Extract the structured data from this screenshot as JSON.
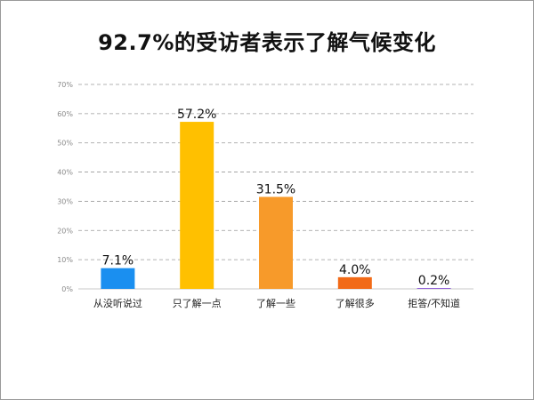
{
  "chart_data": {
    "type": "bar",
    "title": "92.7%的受访者表示了解气候变化",
    "categories": [
      "从没听说过",
      "只了解一点",
      "了解一些",
      "了解很多",
      "拒答/不知道"
    ],
    "values": [
      7.1,
      57.2,
      31.5,
      4.0,
      0.2
    ],
    "data_labels": [
      "7.1%",
      "57.2%",
      "31.5%",
      "4.0%",
      "0.2%"
    ],
    "colors": [
      "#1a8ff0",
      "#ffc000",
      "#f79a2a",
      "#f26a17",
      "#7a3fd0"
    ],
    "ylim": [
      0,
      70
    ],
    "yticks": [
      "0%",
      "10%",
      "20%",
      "30%",
      "40%",
      "50%",
      "60%",
      "70%"
    ],
    "grid": true,
    "xlabel": "",
    "ylabel": ""
  }
}
